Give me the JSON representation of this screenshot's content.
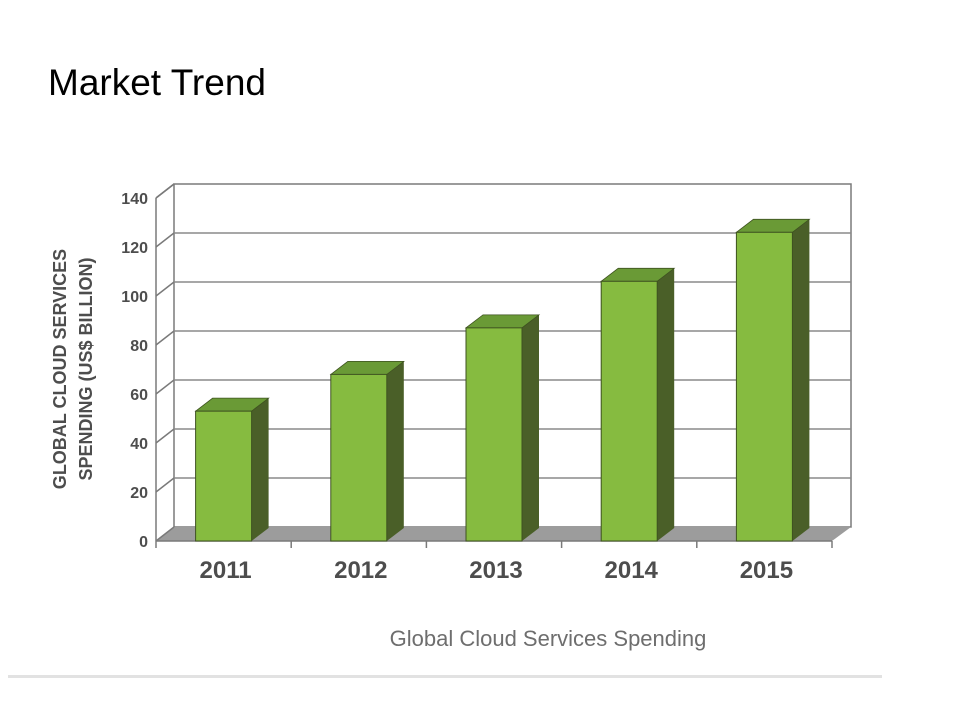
{
  "slide": {
    "title": "Market Trend"
  },
  "chart_data": {
    "type": "bar",
    "title": "",
    "caption": "Global Cloud Services Spending",
    "xlabel": "",
    "ylabel": "GLOBAL CLOUD SERVICES SPENDING (US$ BILLION)",
    "ylabel_lines": [
      "GLOBAL CLOUD SERVICES",
      "SPENDING (US$ BILLION)"
    ],
    "categories": [
      "2011",
      "2012",
      "2013",
      "2014",
      "2015"
    ],
    "values": [
      53,
      68,
      87,
      106,
      126
    ],
    "ylim": [
      0,
      140
    ],
    "yticks": [
      0,
      20,
      40,
      60,
      80,
      100,
      120,
      140
    ],
    "grid": true,
    "legend": "none",
    "style": "3d",
    "colors": {
      "bar_front": "#86bb40",
      "bar_side": "#4a5f28",
      "bar_top": "#6a9a36",
      "floor": "#9c9c9c",
      "grid": "#8a8a8a",
      "axis": "#7a7a7a",
      "tick_label": "#4d4d4d",
      "caption": "#6e6e6e"
    }
  }
}
